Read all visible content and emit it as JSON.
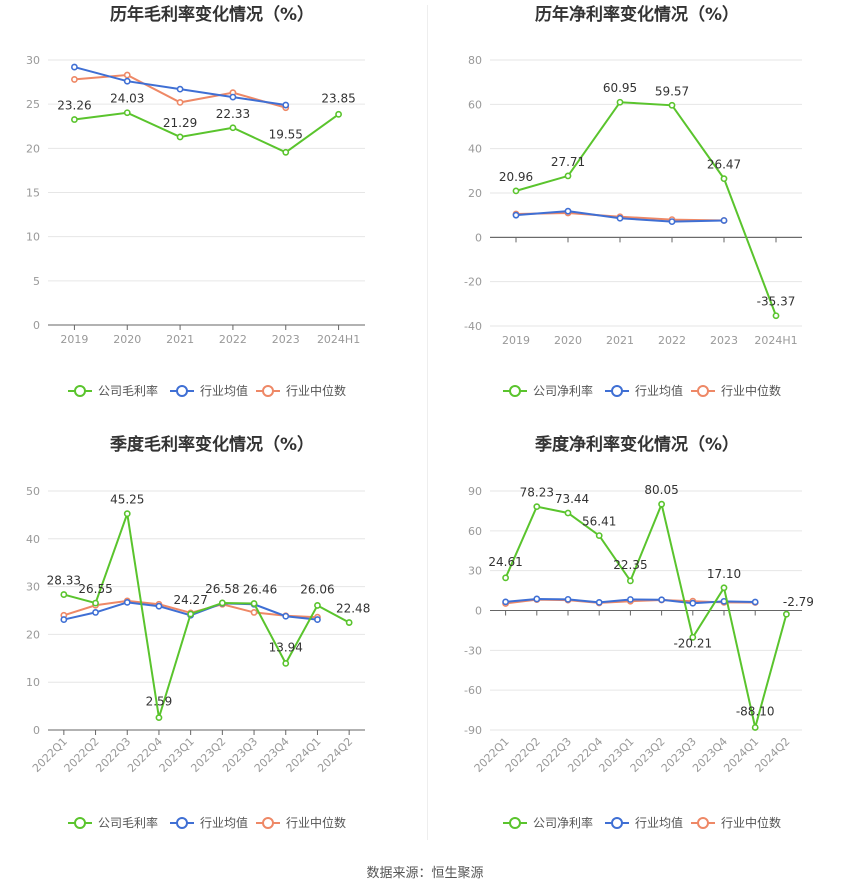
{
  "footer": {
    "source": "数据来源：恒生聚源"
  },
  "colors": {
    "company": "#5ac42d",
    "avg": "#3f6fd4",
    "median": "#ee8866"
  },
  "chart_data": [
    {
      "id": "annual-gross",
      "type": "line",
      "title": "历年毛利率变化情况（%）",
      "categories": [
        "2019",
        "2020",
        "2021",
        "2022",
        "2023",
        "2024H1"
      ],
      "ylim": [
        0,
        30
      ],
      "yticks": [
        0,
        5,
        10,
        15,
        20,
        25,
        30
      ],
      "series": [
        {
          "name": "公司毛利率",
          "key": "company",
          "values": [
            23.26,
            24.03,
            21.29,
            22.33,
            19.55,
            23.85
          ],
          "labels": [
            "23.26",
            "24.03",
            "21.29",
            "22.33",
            "19.55",
            "23.85"
          ]
        },
        {
          "name": "行业均值",
          "key": "avg",
          "values": [
            29.2,
            27.6,
            26.7,
            25.8,
            24.9,
            null
          ]
        },
        {
          "name": "行业中位数",
          "key": "median",
          "values": [
            27.8,
            28.3,
            25.2,
            26.3,
            24.6,
            null
          ]
        }
      ]
    },
    {
      "id": "annual-net",
      "type": "line",
      "title": "历年净利率变化情况（%）",
      "categories": [
        "2019",
        "2020",
        "2021",
        "2022",
        "2023",
        "2024H1"
      ],
      "ylim": [
        -40,
        80
      ],
      "yticks": [
        -40,
        -20,
        0,
        20,
        40,
        60,
        80
      ],
      "series": [
        {
          "name": "公司净利率",
          "key": "company",
          "values": [
            20.96,
            27.71,
            60.95,
            59.57,
            26.47,
            -35.37
          ],
          "labels": [
            "20.96",
            "27.71",
            "60.95",
            "59.57",
            "26.47",
            "-35.37"
          ]
        },
        {
          "name": "行业均值",
          "key": "avg",
          "values": [
            10.0,
            11.8,
            8.6,
            7.1,
            7.6,
            null
          ]
        },
        {
          "name": "行业中位数",
          "key": "median",
          "values": [
            10.5,
            11.0,
            9.3,
            8.0,
            7.6,
            null
          ]
        }
      ]
    },
    {
      "id": "quarterly-gross",
      "type": "line",
      "title": "季度毛利率变化情况（%）",
      "categories": [
        "2022Q1",
        "2022Q2",
        "2022Q3",
        "2022Q4",
        "2023Q1",
        "2023Q2",
        "2023Q3",
        "2023Q4",
        "2024Q1",
        "2024Q2"
      ],
      "ylim": [
        0,
        50
      ],
      "yticks": [
        0,
        10,
        20,
        30,
        40,
        50
      ],
      "series": [
        {
          "name": "公司毛利率",
          "key": "company",
          "values": [
            28.33,
            26.55,
            45.25,
            2.59,
            24.27,
            26.58,
            26.46,
            13.94,
            26.06,
            22.48
          ],
          "labels": [
            "28.33",
            "26.55",
            "45.25",
            "2.59",
            "24.27",
            "26.58",
            "26.46",
            "13.94",
            "26.06",
            "22.48"
          ]
        },
        {
          "name": "行业均值",
          "key": "avg",
          "values": [
            23.1,
            24.6,
            26.7,
            25.9,
            24.0,
            26.5,
            26.3,
            23.8,
            23.1,
            null
          ]
        },
        {
          "name": "行业中位数",
          "key": "median",
          "values": [
            24.0,
            26.1,
            27.0,
            26.3,
            24.5,
            26.3,
            24.6,
            23.9,
            23.6,
            null
          ]
        }
      ]
    },
    {
      "id": "quarterly-net",
      "type": "line",
      "title": "季度净利率变化情况（%）",
      "categories": [
        "2022Q1",
        "2022Q2",
        "2022Q3",
        "2022Q4",
        "2023Q1",
        "2023Q2",
        "2023Q3",
        "2023Q4",
        "2024Q1",
        "2024Q2"
      ],
      "ylim": [
        -90,
        90
      ],
      "yticks": [
        -90,
        -60,
        -30,
        0,
        30,
        60,
        90
      ],
      "series": [
        {
          "name": "公司净利率",
          "key": "company",
          "values": [
            24.61,
            78.23,
            73.44,
            56.41,
            22.35,
            80.05,
            -20.21,
            17.1,
            -88.1,
            -2.79
          ],
          "labels": [
            "24.61",
            "78.23",
            "73.44",
            "56.41",
            "22.35",
            "80.05",
            "-20.21",
            "17.10",
            "-88.10",
            "-2.79"
          ]
        },
        {
          "name": "行业均值",
          "key": "avg",
          "values": [
            6.5,
            8.7,
            8.4,
            6.1,
            8.3,
            8.1,
            5.5,
            6.9,
            6.4,
            null
          ]
        },
        {
          "name": "行业中位数",
          "key": "median",
          "values": [
            5.3,
            8.2,
            7.8,
            5.7,
            7.0,
            7.9,
            7.0,
            6.1,
            6.0,
            null
          ]
        }
      ]
    }
  ]
}
